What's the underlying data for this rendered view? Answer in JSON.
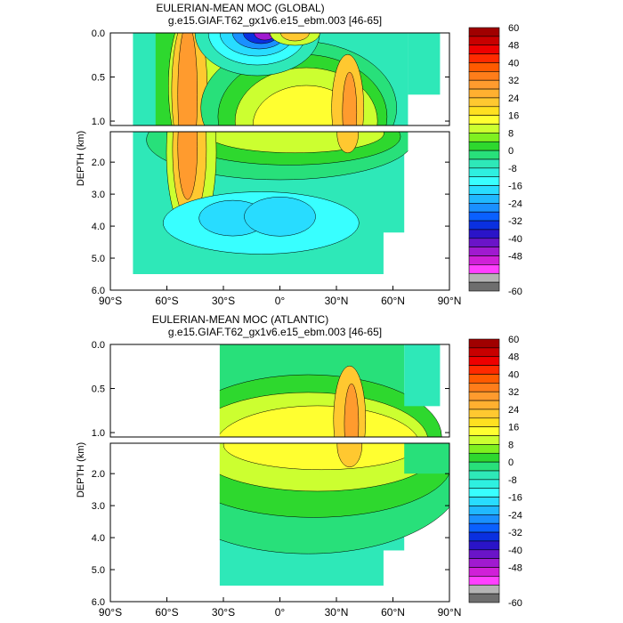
{
  "chart_data": [
    {
      "type": "contour",
      "title": "EULERIAN-MEAN MOC (GLOBAL)",
      "subtitle": "g.e15.GIAF.T62_gx1v6.e15_ebm.003 [46-65]",
      "ylabel": "DEPTH (km)",
      "x_ticks": [
        "90°S",
        "60°S",
        "30°S",
        "0°",
        "30°N",
        "60°N",
        "90°N"
      ],
      "upper_y_ticks": [
        "0.0",
        "0.5",
        "1.0"
      ],
      "lower_y_ticks": [
        "2.0",
        "3.0",
        "4.0",
        "5.0",
        "6.0"
      ],
      "xlim": [
        -90,
        90
      ],
      "ylim_upper_km": [
        0,
        1.05
      ],
      "ylim_lower_km": [
        1.05,
        6.0
      ],
      "features": [
        {
          "name": "antarctic-cell",
          "lat_center": -48,
          "depth_center": 1.6,
          "value": 28
        },
        {
          "name": "southern-ocean-deep-cell",
          "lat_center": -20,
          "depth_center": 3.7,
          "value": -12
        },
        {
          "name": "equatorial-surface-cell",
          "lat_center": -10,
          "depth_center": 0.02,
          "value": -60
        },
        {
          "name": "tropical-positive-cell",
          "lat_center": 6,
          "depth_center": 0.3,
          "value": 22
        },
        {
          "name": "amoc-core",
          "lat_center": 36,
          "depth_center": 0.9,
          "value": 24
        }
      ]
    },
    {
      "type": "contour",
      "title": "EULERIAN-MEAN MOC (ATLANTIC)",
      "subtitle": "g.e15.GIAF.T62_gx1v6.e15_ebm.003 [46-65]",
      "ylabel": "DEPTH (km)",
      "x_ticks": [
        "90°S",
        "60°S",
        "30°S",
        "0°",
        "30°N",
        "60°N",
        "90°N"
      ],
      "upper_y_ticks": [
        "0.0",
        "0.5",
        "1.0"
      ],
      "lower_y_ticks": [
        "2.0",
        "3.0",
        "4.0",
        "5.0",
        "6.0"
      ],
      "xlim": [
        -90,
        90
      ],
      "ylim_upper_km": [
        0,
        1.05
      ],
      "ylim_lower_km": [
        1.05,
        6.0
      ],
      "features": [
        {
          "name": "amoc-upper-cell",
          "lat_center": 20,
          "depth_center": 1.0,
          "value": 20
        },
        {
          "name": "amoc-core",
          "lat_center": 37,
          "depth_center": 0.9,
          "value": 24
        }
      ]
    }
  ],
  "colorbar": {
    "labels": [
      "60",
      "48",
      "40",
      "32",
      "24",
      "16",
      "8",
      "0",
      "-8",
      "-16",
      "-24",
      "-32",
      "-40",
      "-48",
      "-60"
    ],
    "colors": [
      "#a00000",
      "#c80000",
      "#ee0000",
      "#ff2a00",
      "#ff5a00",
      "#ff7d1a",
      "#ff9b2e",
      "#ffb030",
      "#ffc830",
      "#ffe020",
      "#ffff30",
      "#ccff30",
      "#7ff020",
      "#2ed82e",
      "#28e07a",
      "#2ee8b8",
      "#2ef0e0",
      "#38ffff",
      "#28dcff",
      "#20b8ff",
      "#1a90ff",
      "#0a60ff",
      "#0a30e0",
      "#2a14c8",
      "#6a14c8",
      "#a01ad0",
      "#d020d8",
      "#ff40ff",
      "#b4b4b4",
      "#6e6e6e"
    ]
  }
}
